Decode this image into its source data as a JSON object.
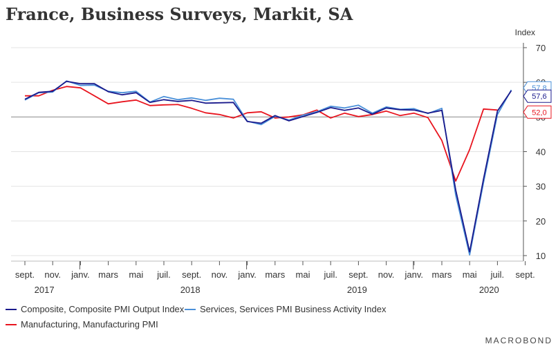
{
  "title": "France, Business Surveys, Markit, SA",
  "brand": "MACROBOND",
  "chart_data": {
    "type": "line",
    "ylabel": "Index",
    "ylim": [
      8,
      73
    ],
    "yticks": [
      10,
      20,
      30,
      40,
      50,
      60,
      70
    ],
    "reference_line": 50,
    "x_month_labels": [
      "sept.",
      "nov.",
      "janv.",
      "mars",
      "mai",
      "juil.",
      "sept.",
      "nov.",
      "janv.",
      "mars",
      "mai",
      "juil.",
      "sept.",
      "nov.",
      "janv.",
      "mars",
      "mai",
      "juil.",
      "sept."
    ],
    "x_year_labels": [
      "2017",
      "2018",
      "2019",
      "2020"
    ],
    "x_start": "2017-09",
    "series": [
      {
        "name": "Composite, Composite PMI Output Index",
        "color": "#1a1a8c",
        "end_label": "57,6",
        "values": [
          55.1,
          57.1,
          57.4,
          60.3,
          59.6,
          59.6,
          57.3,
          56.4,
          57.0,
          54.2,
          55.0,
          54.5,
          54.8,
          54.0,
          54.1,
          54.2,
          48.7,
          48.2,
          50.4,
          48.9,
          50.1,
          51.3,
          52.7,
          51.9,
          52.6,
          50.8,
          52.6,
          52.1,
          52.0,
          51.1,
          51.9,
          28.9,
          11.1,
          32.1,
          51.7,
          57.6
        ]
      },
      {
        "name": "Services, Services PMI Business Activity Index",
        "color": "#4a90d9",
        "end_label": "57,8",
        "values": [
          54.9,
          57.0,
          57.2,
          60.4,
          59.1,
          59.2,
          57.4,
          57.0,
          57.4,
          54.3,
          55.9,
          55.0,
          55.5,
          54.8,
          55.4,
          55.1,
          48.8,
          47.8,
          50.2,
          49.1,
          50.5,
          51.5,
          53.1,
          52.6,
          53.4,
          51.1,
          52.9,
          52.2,
          52.4,
          51.0,
          52.5,
          27.4,
          10.2,
          31.1,
          50.7,
          57.8
        ]
      },
      {
        "name": "Manufacturing, Manufacturing PMI",
        "color": "#e8141e",
        "end_label": "52,0",
        "values": [
          56.1,
          56.1,
          57.7,
          58.8,
          58.4,
          56.1,
          53.8,
          54.4,
          54.9,
          53.3,
          53.5,
          53.6,
          52.5,
          51.2,
          50.7,
          49.7,
          51.2,
          51.5,
          49.7,
          50.0,
          50.6,
          52.0,
          49.7,
          51.1,
          50.1,
          50.7,
          51.7,
          50.4,
          51.1,
          49.8,
          43.2,
          31.5,
          40.6,
          52.3,
          52.0
        ]
      }
    ]
  }
}
